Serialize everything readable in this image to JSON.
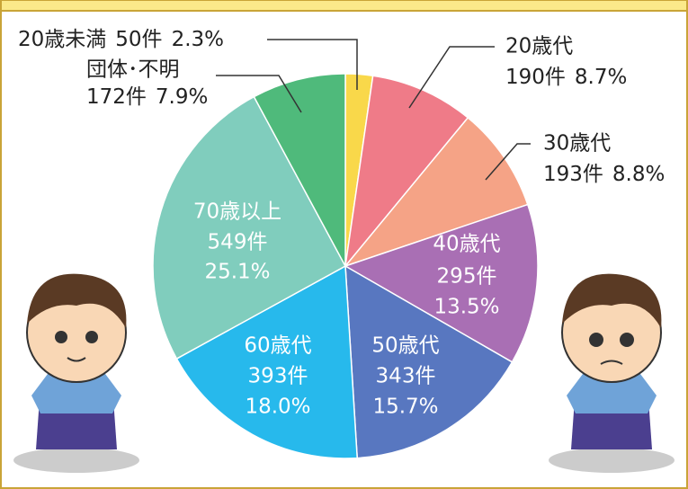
{
  "chart_data": {
    "type": "pie",
    "categories": [
      "20歳未満",
      "20歳代",
      "30歳代",
      "40歳代",
      "50歳代",
      "60歳代",
      "70歳以上",
      "団体･不明"
    ],
    "values": [
      50,
      190,
      193,
      295,
      343,
      393,
      549,
      172
    ],
    "value_labels": [
      "50件",
      "190件",
      "193件",
      "295件",
      "343件",
      "393件",
      "549件",
      "172件"
    ],
    "percent_labels": [
      "2.3%",
      "8.7%",
      "8.8%",
      "13.5%",
      "15.7%",
      "18.0%",
      "25.1%",
      "7.9%"
    ],
    "colors": [
      "#f9d84a",
      "#ef7b88",
      "#f5a386",
      "#a96fb4",
      "#5877c0",
      "#27b9ec",
      "#80cdbd",
      "#4fba7b"
    ]
  }
}
